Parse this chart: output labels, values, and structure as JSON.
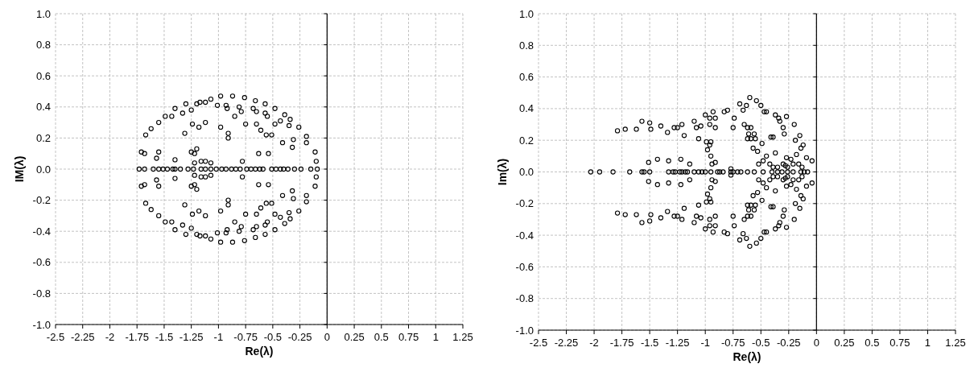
{
  "chart_data": [
    {
      "type": "scatter",
      "xlabel": "Re(λ)",
      "ylabel": "IM(λ)",
      "marker": "circle",
      "grid": true,
      "color": "#000000",
      "xlim": [
        -2.5,
        1.25
      ],
      "xticks": [
        -2.5,
        -2.25,
        -2,
        -1.75,
        -1.5,
        -1.25,
        -1,
        -0.75,
        -0.5,
        -0.25,
        0,
        0.25,
        0.5,
        0.75,
        1,
        1.25
      ],
      "ylim": [
        -1,
        1
      ],
      "yticks": [
        {
          "value": -1,
          "label": "-1.0"
        },
        {
          "value": -0.8,
          "label": "-0.8"
        },
        {
          "value": -0.6,
          "label": "-0.6"
        },
        {
          "value": -0.4,
          "label": "-0.4"
        },
        {
          "value": -0.2,
          "label": "-0.2"
        },
        {
          "value": 0,
          "label": "0.0"
        },
        {
          "value": 0.2,
          "label": "0.2"
        },
        {
          "value": 0.4,
          "label": "0.4"
        },
        {
          "value": 0.6,
          "label": "0.6"
        },
        {
          "value": 0.8,
          "label": "0.8"
        },
        {
          "value": 1,
          "label": "1.0"
        }
      ],
      "x": [
        -1.67,
        -1.62,
        -1.55,
        -1.49,
        -1.43,
        -1.4,
        -1.33,
        -1.3,
        -1.25,
        -1.2,
        -1.17,
        -1.12,
        -1.07,
        -1.01,
        -0.98,
        -0.93,
        -0.92,
        -0.87,
        -0.81,
        -0.79,
        -0.85,
        -0.76,
        -0.68,
        -0.66,
        -0.65,
        -0.57,
        -0.57,
        -0.55,
        -0.48,
        -0.39,
        -0.43,
        -0.48,
        -0.35,
        -0.34,
        -0.26,
        -0.65,
        -0.61,
        -0.56,
        -0.51,
        -0.19,
        -0.19,
        -0.31,
        -0.32,
        -0.41,
        -0.11,
        -0.1,
        -0.54,
        -0.63,
        -0.78,
        -1.24,
        -1.18,
        -1.12,
        -0.98,
        -0.91,
        -0.91,
        -0.75,
        -1.31,
        -1.25,
        -1.22,
        -1.2,
        -1.4,
        -1.22,
        -1.16,
        -1.12,
        -1.07,
        -1.57,
        -1.55,
        -1.68,
        -1.71,
        -1.67,
        -1.62,
        -1.55,
        -1.49,
        -1.43,
        -1.4,
        -1.33,
        -1.3,
        -1.25,
        -1.2,
        -1.17,
        -1.12,
        -1.07,
        -1.01,
        -0.98,
        -0.93,
        -0.92,
        -0.87,
        -0.81,
        -0.79,
        -0.85,
        -0.76,
        -0.68,
        -0.66,
        -0.65,
        -0.57,
        -0.57,
        -0.55,
        -0.48,
        -0.39,
        -0.43,
        -0.48,
        -0.35,
        -0.34,
        -0.26,
        -0.65,
        -0.61,
        -0.56,
        -0.51,
        -0.19,
        -0.19,
        -0.31,
        -0.32,
        -0.41,
        -0.11,
        -0.1,
        -0.54,
        -0.63,
        -0.78,
        -1.24,
        -1.18,
        -1.12,
        -0.98,
        -0.91,
        -0.91,
        -0.75,
        -1.31,
        -1.25,
        -1.22,
        -1.2,
        -1.4,
        -1.22,
        -1.16,
        -1.12,
        -1.07,
        -1.57,
        -1.55,
        -1.68,
        -1.71,
        -1.73,
        -1.68,
        -1.6,
        -1.55,
        -1.51,
        -1.47,
        -1.42,
        -1.4,
        -1.35,
        -1.28,
        -1.23,
        -1.16,
        -1.12,
        -1.07,
        -1.02,
        -0.97,
        -0.93,
        -0.88,
        -0.84,
        -0.8,
        -0.74,
        -0.7,
        -0.66,
        -0.62,
        -0.59,
        -0.51,
        -0.47,
        -0.43,
        -0.4,
        -0.36,
        -0.3,
        -0.24,
        -0.15,
        -0.09
      ],
      "values": [
        0.22,
        0.26,
        0.3,
        0.34,
        0.34,
        0.39,
        0.36,
        0.42,
        0.38,
        0.42,
        0.43,
        0.43,
        0.45,
        0.41,
        0.47,
        0.41,
        0.39,
        0.47,
        0.4,
        0.37,
        0.34,
        0.46,
        0.39,
        0.44,
        0.37,
        0.42,
        0.36,
        0.34,
        0.39,
        0.35,
        0.31,
        0.29,
        0.28,
        0.32,
        0.27,
        0.29,
        0.25,
        0.22,
        0.22,
        0.21,
        0.17,
        0.19,
        0.14,
        0.17,
        0.11,
        0.05,
        0.1,
        0.1,
        0.05,
        0.29,
        0.27,
        0.3,
        0.27,
        0.23,
        0.2,
        0.29,
        0.23,
        0.11,
        0.1,
        0.13,
        0.06,
        0.04,
        0.05,
        0.05,
        0.04,
        0.07,
        0.11,
        0.1,
        0.11,
        -0.22,
        -0.26,
        -0.3,
        -0.34,
        -0.34,
        -0.39,
        -0.36,
        -0.42,
        -0.38,
        -0.42,
        -0.43,
        -0.43,
        -0.45,
        -0.41,
        -0.47,
        -0.41,
        -0.39,
        -0.47,
        -0.4,
        -0.37,
        -0.34,
        -0.46,
        -0.39,
        -0.44,
        -0.37,
        -0.42,
        -0.36,
        -0.34,
        -0.39,
        -0.35,
        -0.31,
        -0.29,
        -0.28,
        -0.32,
        -0.27,
        -0.29,
        -0.25,
        -0.22,
        -0.22,
        -0.21,
        -0.17,
        -0.19,
        -0.14,
        -0.17,
        -0.11,
        -0.05,
        -0.1,
        -0.1,
        -0.05,
        -0.29,
        -0.27,
        -0.3,
        -0.27,
        -0.23,
        -0.2,
        -0.29,
        -0.23,
        -0.11,
        -0.1,
        -0.13,
        -0.06,
        -0.04,
        -0.05,
        -0.05,
        -0.04,
        -0.07,
        -0.11,
        -0.1,
        -0.11,
        0,
        0,
        0,
        0,
        0,
        0,
        0,
        0,
        0,
        0,
        0,
        0,
        0,
        0,
        0,
        0,
        0,
        0,
        0,
        0,
        0,
        0,
        0,
        0,
        0,
        0,
        0,
        0,
        0,
        0,
        0,
        0,
        0,
        0
      ]
    },
    {
      "type": "scatter",
      "xlabel": "Re(λ)",
      "ylabel": "Im(λ)",
      "marker": "circle",
      "grid": true,
      "color": "#000000",
      "xlim": [
        -2.5,
        1.25
      ],
      "xticks": [
        -2.5,
        -2.25,
        -2,
        -1.75,
        -1.5,
        -1.25,
        -1,
        -0.75,
        -0.5,
        -0.25,
        0,
        0.25,
        0.5,
        0.75,
        1,
        1.25
      ],
      "ylim": [
        -1,
        1
      ],
      "yticks": [
        {
          "value": -1,
          "label": "-1.0"
        },
        {
          "value": -0.8,
          "label": "-0.8"
        },
        {
          "value": -0.6,
          "label": "-0.6"
        },
        {
          "value": -0.4,
          "label": "-0.4"
        },
        {
          "value": -0.2,
          "label": "-0.2"
        },
        {
          "value": 0,
          "label": "0.0"
        },
        {
          "value": 0.2,
          "label": "0.2"
        },
        {
          "value": 0.4,
          "label": "0.4"
        },
        {
          "value": 0.6,
          "label": "0.6"
        },
        {
          "value": 0.8,
          "label": "0.8"
        },
        {
          "value": 1,
          "label": "1.0"
        }
      ],
      "x": [
        -1.79,
        -1.72,
        -1.62,
        -1.57,
        -1.5,
        -1.49,
        -1.4,
        -1.34,
        -1.28,
        -1.25,
        -1.21,
        -1.19,
        -1.1,
        -1.08,
        -1.04,
        -1.06,
        -1.0,
        -0.96,
        -0.93,
        -0.91,
        -0.96,
        -0.91,
        -0.83,
        -0.8,
        -0.74,
        -0.75,
        -0.69,
        -0.66,
        -0.63,
        -0.6,
        -0.54,
        -0.5,
        -0.47,
        -0.45,
        -0.65,
        -0.62,
        -0.59,
        -0.61,
        -0.56,
        -0.62,
        -0.59,
        -0.55,
        -0.49,
        -0.57,
        -0.53,
        -0.41,
        -0.39,
        -0.37,
        -0.34,
        -0.33,
        -0.27,
        -0.3,
        -0.29,
        -0.2,
        -0.15,
        -0.19,
        -0.12,
        -0.14,
        -0.18,
        -0.27,
        -0.23,
        -0.37,
        -0.45,
        -0.48,
        -0.52,
        -0.42,
        -0.39,
        -0.35,
        -0.3,
        -0.28,
        -0.26,
        -0.21,
        -0.16,
        -0.13,
        -0.09,
        -0.04,
        -0.95,
        -0.99,
        -0.96,
        -0.98,
        -0.95,
        -0.94,
        -0.91,
        -1.51,
        -1.43,
        -1.33,
        -1.22,
        -1.14,
        -0.77,
        -1.79,
        -1.72,
        -1.62,
        -1.57,
        -1.5,
        -1.49,
        -1.4,
        -1.34,
        -1.28,
        -1.25,
        -1.21,
        -1.19,
        -1.1,
        -1.08,
        -1.04,
        -1.06,
        -1.0,
        -0.96,
        -0.93,
        -0.91,
        -0.96,
        -0.91,
        -0.83,
        -0.8,
        -0.74,
        -0.75,
        -0.69,
        -0.66,
        -0.63,
        -0.6,
        -0.54,
        -0.5,
        -0.47,
        -0.45,
        -0.65,
        -0.62,
        -0.59,
        -0.61,
        -0.56,
        -0.62,
        -0.59,
        -0.55,
        -0.49,
        -0.57,
        -0.53,
        -0.41,
        -0.39,
        -0.37,
        -0.34,
        -0.33,
        -0.27,
        -0.3,
        -0.29,
        -0.2,
        -0.15,
        -0.19,
        -0.12,
        -0.14,
        -0.18,
        -0.27,
        -0.23,
        -0.37,
        -0.45,
        -0.48,
        -0.52,
        -0.42,
        -0.39,
        -0.35,
        -0.3,
        -0.28,
        -0.26,
        -0.21,
        -0.16,
        -0.13,
        -0.09,
        -0.04,
        -0.95,
        -0.99,
        -0.96,
        -0.98,
        -0.95,
        -0.94,
        -0.91,
        -1.51,
        -1.43,
        -1.33,
        -1.22,
        -1.14,
        -0.77,
        -2.03,
        -1.95,
        -1.83,
        -1.68,
        -1.57,
        -1.55,
        -1.5,
        -1.33,
        -1.29,
        -1.27,
        -1.23,
        -1.21,
        -1.18,
        -1.16,
        -1.1,
        -1.06,
        -1.03,
        -1.0,
        -0.95,
        -0.89,
        -0.87,
        -0.84,
        -0.77,
        -0.75,
        -0.71,
        -0.68,
        -0.62,
        -0.56,
        -0.48,
        -0.4,
        -0.35,
        -0.31,
        -0.26,
        -0.21,
        -0.14,
        -0.11,
        -0.08
      ],
      "values": [
        0.26,
        0.27,
        0.27,
        0.32,
        0.31,
        0.27,
        0.29,
        0.25,
        0.28,
        0.28,
        0.3,
        0.23,
        0.32,
        0.28,
        0.29,
        0.21,
        0.36,
        0.34,
        0.38,
        0.34,
        0.3,
        0.28,
        0.38,
        0.39,
        0.34,
        0.28,
        0.43,
        0.39,
        0.42,
        0.47,
        0.45,
        0.42,
        0.38,
        0.38,
        0.3,
        0.28,
        0.28,
        0.24,
        0.24,
        0.21,
        0.21,
        0.21,
        0.18,
        0.15,
        0.13,
        0.22,
        0.22,
        0.36,
        0.34,
        0.32,
        0.35,
        0.28,
        0.24,
        0.3,
        0.23,
        0.2,
        0.17,
        0.15,
        0.11,
        0.09,
        0.08,
        0.12,
        0.1,
        0.07,
        0.05,
        0.05,
        0.03,
        0.03,
        0.05,
        0.04,
        0.03,
        0.05,
        0.05,
        0.03,
        0.09,
        0.07,
        0.19,
        0.19,
        0.17,
        0.14,
        0.1,
        0.05,
        0.06,
        0.06,
        0.08,
        0.07,
        0.08,
        0.05,
        0.02,
        -0.26,
        -0.27,
        -0.27,
        -0.32,
        -0.31,
        -0.27,
        -0.29,
        -0.25,
        -0.28,
        -0.28,
        -0.3,
        -0.23,
        -0.32,
        -0.28,
        -0.29,
        -0.21,
        -0.36,
        -0.34,
        -0.38,
        -0.34,
        -0.3,
        -0.28,
        -0.38,
        -0.39,
        -0.34,
        -0.28,
        -0.43,
        -0.39,
        -0.42,
        -0.47,
        -0.45,
        -0.42,
        -0.38,
        -0.38,
        -0.3,
        -0.28,
        -0.28,
        -0.24,
        -0.24,
        -0.21,
        -0.21,
        -0.21,
        -0.18,
        -0.15,
        -0.13,
        -0.22,
        -0.22,
        -0.36,
        -0.34,
        -0.32,
        -0.35,
        -0.28,
        -0.24,
        -0.3,
        -0.23,
        -0.2,
        -0.17,
        -0.15,
        -0.11,
        -0.09,
        -0.08,
        -0.12,
        -0.1,
        -0.07,
        -0.05,
        -0.05,
        -0.03,
        -0.03,
        -0.05,
        -0.04,
        -0.03,
        -0.05,
        -0.05,
        -0.03,
        -0.09,
        -0.07,
        -0.19,
        -0.19,
        -0.17,
        -0.14,
        -0.1,
        -0.05,
        -0.06,
        -0.06,
        -0.08,
        -0.07,
        -0.08,
        -0.05,
        -0.02,
        0,
        0,
        0,
        0,
        0,
        0,
        0,
        0,
        0,
        0,
        0,
        0,
        0,
        0,
        0,
        0,
        0,
        0,
        0,
        0,
        0,
        0,
        0,
        0,
        0,
        0,
        0,
        0,
        0,
        0,
        0,
        0,
        0,
        0,
        0,
        0,
        0
      ]
    }
  ]
}
